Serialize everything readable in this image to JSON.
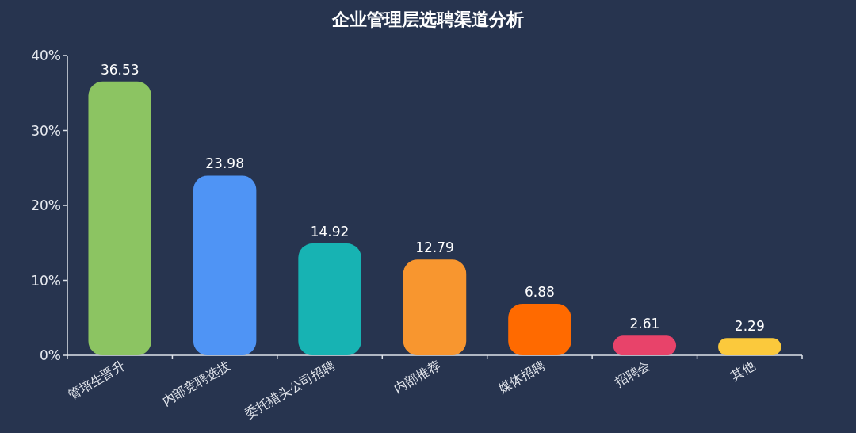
{
  "chart_data": {
    "type": "bar",
    "title": "企业管理层选聘渠道分析",
    "categories": [
      "管培生晋升",
      "内部竞聘选拔",
      "委托猎头公司招聘",
      "内部推荐",
      "媒体招聘",
      "招聘会",
      "其他"
    ],
    "values": [
      36.53,
      23.98,
      14.92,
      12.79,
      6.88,
      2.61,
      2.29
    ],
    "colors": [
      "#8cc462",
      "#4f94f5",
      "#17b3b3",
      "#f8962f",
      "#ff6a00",
      "#e8436a",
      "#fbc93c"
    ],
    "ylim": [
      0,
      40
    ],
    "yticks": [
      {
        "value": 0,
        "label": "0%"
      },
      {
        "value": 10,
        "label": "10%"
      },
      {
        "value": 20,
        "label": "20%"
      },
      {
        "value": 30,
        "label": "30%"
      },
      {
        "value": 40,
        "label": "40%"
      }
    ],
    "data_labels": true
  }
}
